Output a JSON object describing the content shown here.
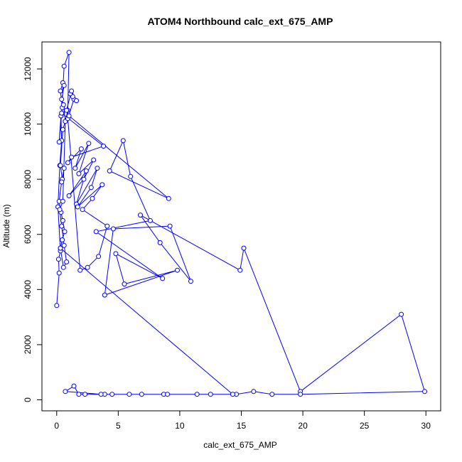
{
  "chart_data": {
    "type": "line",
    "title": "ATOM4 Northbound calc_ext_675_AMP",
    "xlabel": "calc_ext_675_AMP",
    "ylabel": "Altitude (m)",
    "xlim": [
      -1.2,
      31.2
    ],
    "ylim": [
      -400,
      12980
    ],
    "x_ticks": [
      0,
      5,
      10,
      15,
      20,
      25,
      30
    ],
    "y_ticks": [
      0,
      2000,
      4000,
      6000,
      8000,
      10000,
      12000
    ],
    "grid": false,
    "legend": "none",
    "color": "#0000ff",
    "series": [
      {
        "x": [
          0.0,
          0.2,
          0.15,
          0.3,
          0.1,
          0.25,
          0.4,
          0.35,
          0.2,
          0.45,
          0.3,
          0.5,
          0.6,
          0.4,
          0.55,
          0.7,
          0.5,
          0.3,
          0.45,
          0.6,
          0.4,
          0.2,
          0.35,
          0.5,
          0.65,
          0.45,
          0.3,
          0.55,
          0.8,
          0.6,
          0.4,
          0.25,
          0.5,
          0.7,
          0.9,
          1.0,
          0.6,
          0.4,
          3.8,
          1.2,
          0.9,
          2.0,
          1.5,
          2.6,
          1.8,
          3.0,
          2.2,
          1.0,
          2.4,
          1.6,
          3.3,
          2.8,
          1.7,
          3.7,
          2.9,
          2.1,
          4.1,
          3.4,
          2.5,
          1.9,
          0.9,
          1.4,
          1.3,
          1.1,
          1.6,
          1.2,
          0.8,
          1.0,
          9.1,
          4.3,
          5.4,
          6.0,
          7.6,
          3.2,
          8.6,
          4.8,
          5.5,
          9.8,
          3.9,
          4.6,
          9.2,
          10.9,
          8.4,
          6.8,
          14.9,
          15.2,
          19.8,
          28.0,
          29.9,
          19.8,
          17.5,
          16.0,
          14.6,
          12.5,
          11.4,
          8.7,
          6.9,
          4.5,
          3.9,
          2.3,
          1.8,
          1.4,
          0.7,
          3.6,
          5.9,
          9.0,
          14.3,
          0.3
        ],
        "y": [
          3420,
          4600,
          5100,
          5400,
          7000,
          8500,
          9400,
          10300,
          9350,
          10600,
          11200,
          11500,
          11400,
          10900,
          10700,
          10100,
          9800,
          8500,
          8000,
          8400,
          7900,
          7200,
          6800,
          6500,
          6100,
          5800,
          5500,
          4800,
          5000,
          5600,
          6300,
          6900,
          7200,
          10100,
          10500,
          12600,
          12100,
          10400,
          9200,
          8800,
          8600,
          9100,
          8400,
          9300,
          8200,
          8700,
          8000,
          7400,
          8300,
          7100,
          8400,
          7700,
          7000,
          7800,
          7300,
          6900,
          6300,
          5200,
          4800,
          4700,
          10200,
          10900,
          11000,
          11100,
          10850,
          11200,
          10500,
          10300,
          7300,
          8300,
          9400,
          8100,
          6500,
          6100,
          4400,
          5300,
          4200,
          4700,
          3800,
          6200,
          6300,
          4300,
          5700,
          6700,
          4700,
          5500,
          300,
          3100,
          300,
          200,
          200,
          300,
          200,
          200,
          200,
          200,
          200,
          200,
          200,
          200,
          200,
          500,
          300,
          200,
          200,
          200,
          200,
          5500
        ]
      }
    ]
  }
}
